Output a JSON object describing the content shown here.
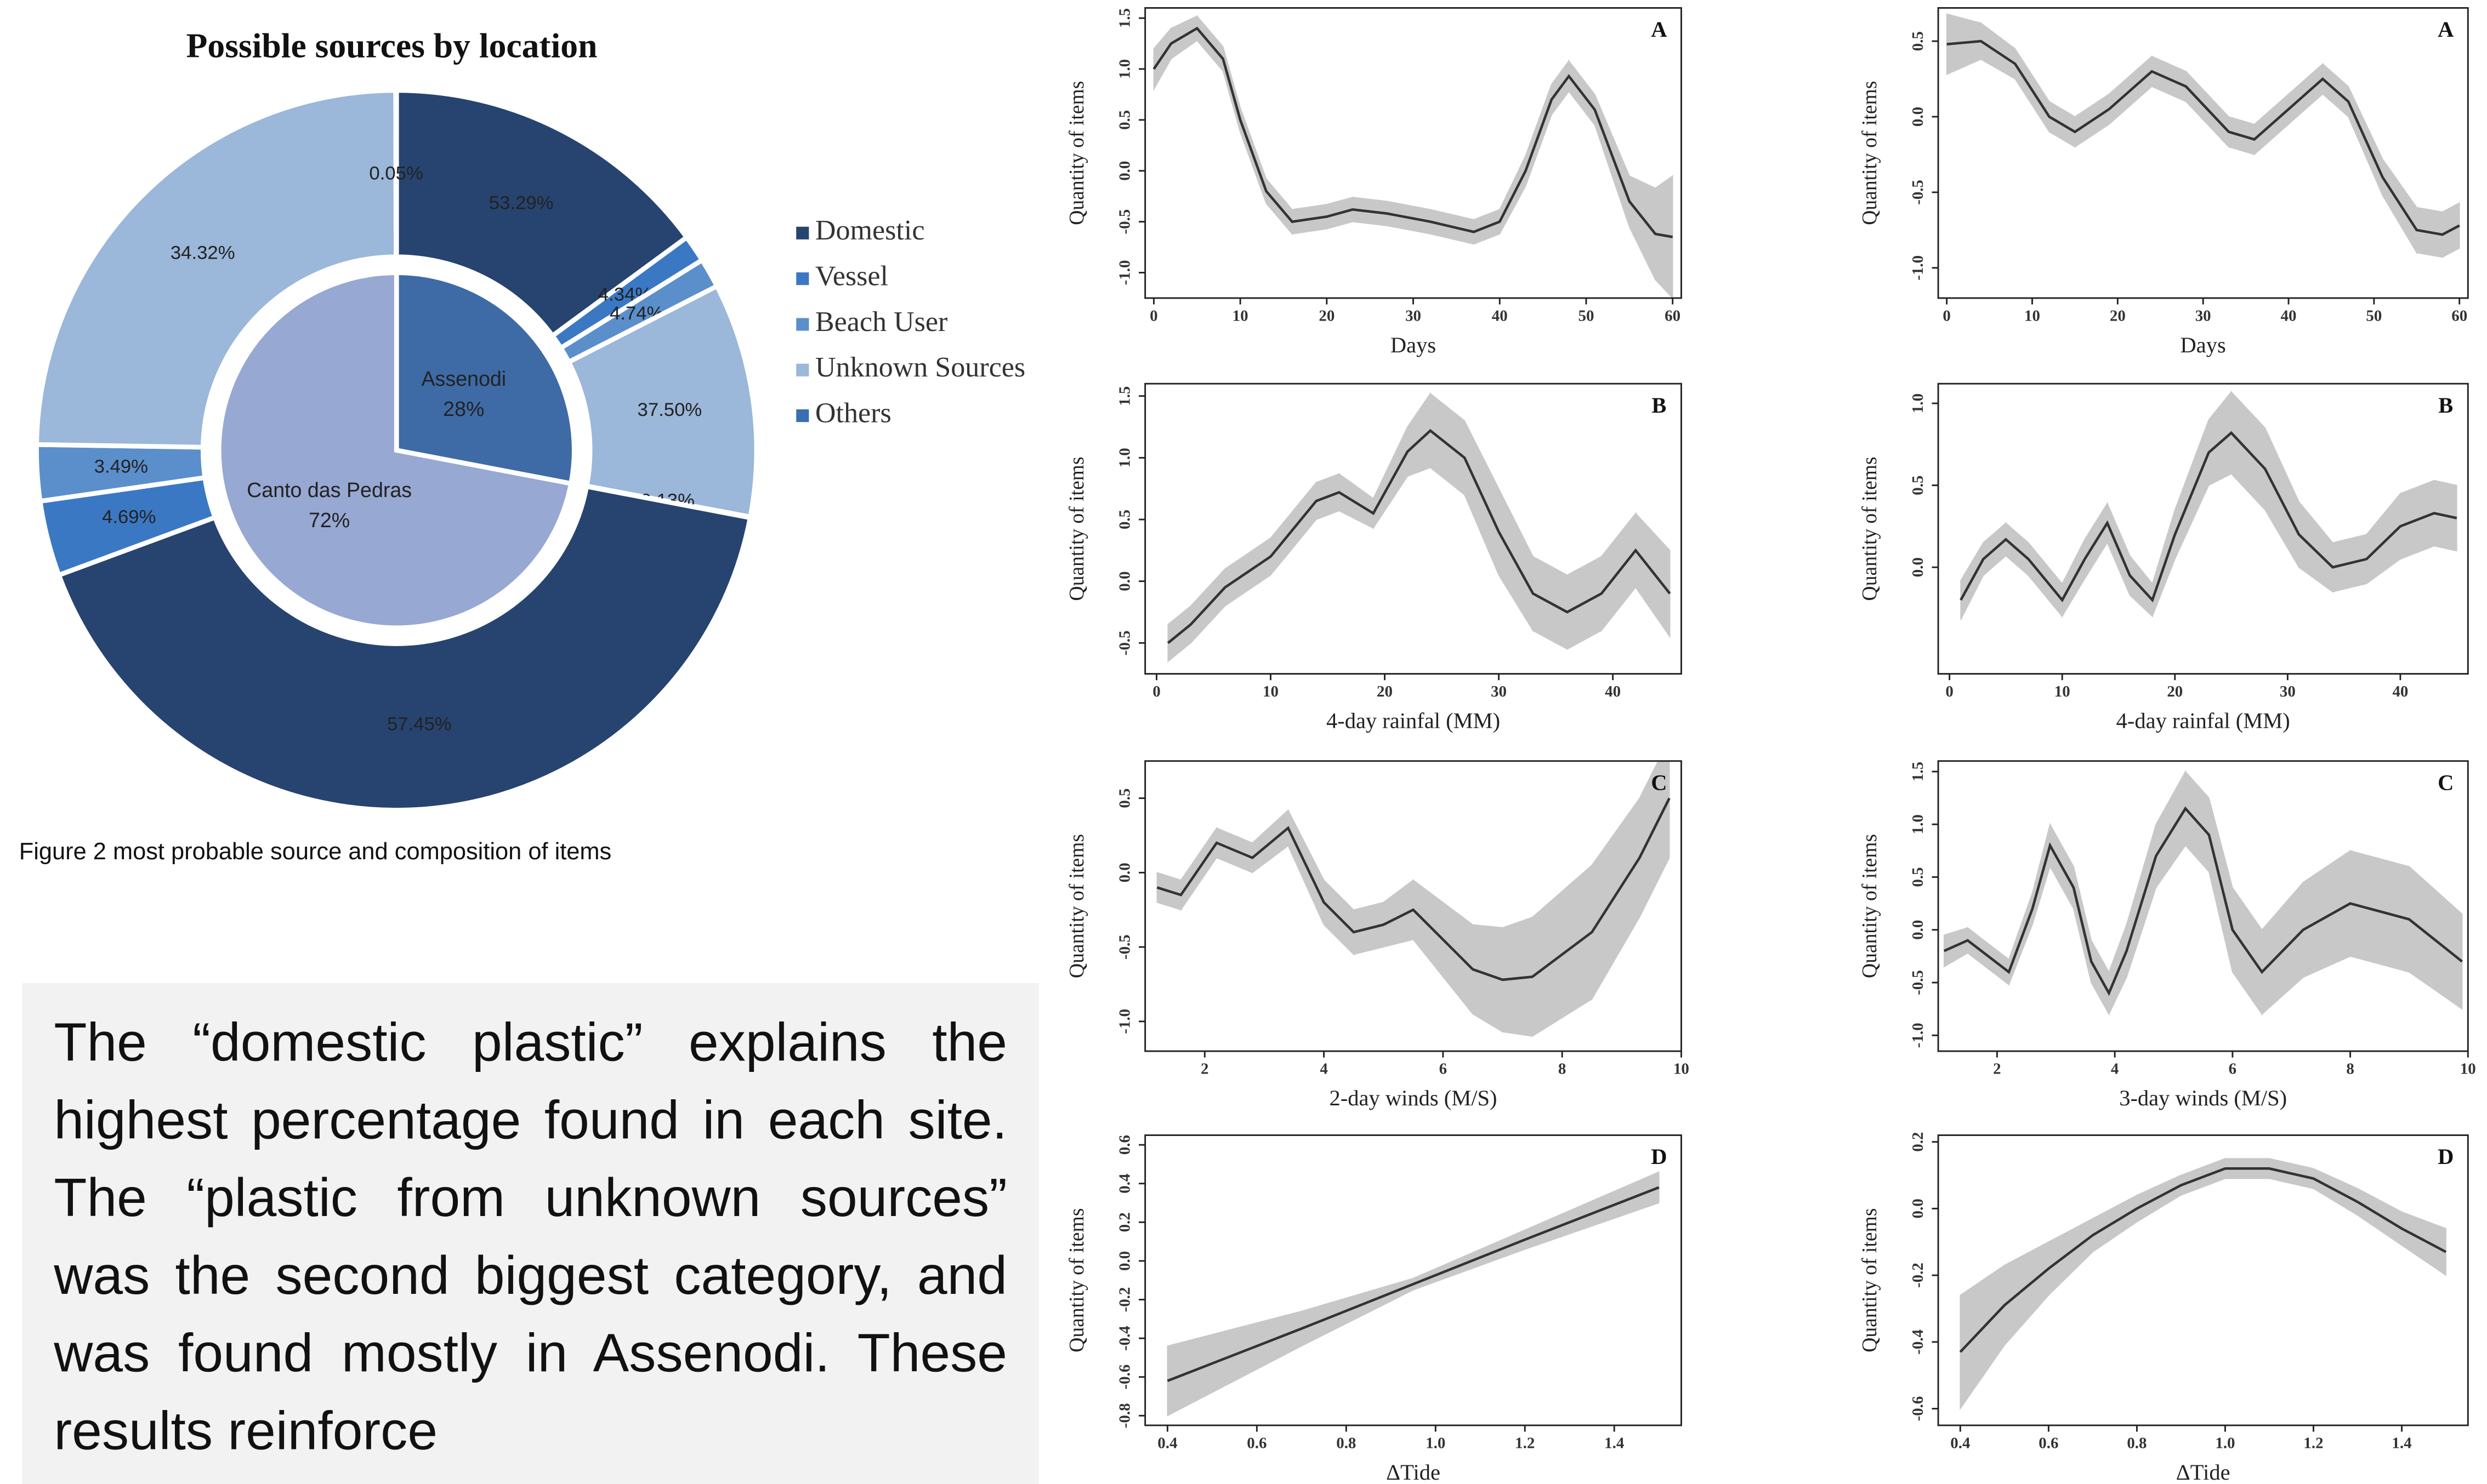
{
  "caption": "Figure 2 most probable source and composition of items",
  "paragraph": "The “domestic plastic” explains the highest percentage found in each site. The “plastic from unknown sources” was the second biggest category, and was found mostly in Assenodi. These results reinforce",
  "chart_data": [
    {
      "type": "donut",
      "title": "Possible sources by location",
      "categories": [
        "Domestic",
        "Vessel",
        "Beach User",
        "Unknown Sources",
        "Others"
      ],
      "colors": [
        "#26446f",
        "#3b78c4",
        "#5b8fcc",
        "#9bb7d9",
        "#3a6fb0"
      ],
      "series": [
        {
          "name": "Assenodi",
          "share": 28,
          "share_label": "28%",
          "color": "#3e6ba5",
          "values": [
            53.29,
            4.34,
            4.74,
            37.5,
            0.13
          ],
          "value_labels": [
            "53.29%",
            "4.34%",
            "4.74%",
            "37.50%",
            "0.13%"
          ]
        },
        {
          "name": "Canto das Pedras",
          "share": 72,
          "share_label": "72%",
          "color": "#97a8d2",
          "values": [
            57.45,
            4.69,
            3.49,
            34.32,
            0.05
          ],
          "value_labels": [
            "57.45%",
            "4.69%",
            "3.49%",
            "34.32%",
            "0.05%"
          ]
        }
      ]
    },
    {
      "type": "smooth",
      "ylabel": "Quantity of items",
      "xlabel": "Days",
      "panel": "A",
      "xlim": [
        -1,
        61
      ],
      "ylim": [
        -1.25,
        1.6
      ],
      "xticks": [
        0,
        10,
        20,
        30,
        40,
        50,
        60
      ],
      "yticks": [
        {
          "value": -1,
          "label": "-1.0"
        },
        -0.5,
        {
          "value": 0,
          "label": "0.0"
        },
        0.5,
        {
          "value": 1,
          "label": "1.0"
        },
        1.5
      ],
      "x": [
        0,
        2,
        5,
        8,
        10,
        13,
        16,
        20,
        23,
        27,
        32,
        37,
        40,
        43,
        46,
        48,
        51,
        55,
        58,
        60
      ],
      "y": [
        1.0,
        1.25,
        1.4,
        1.1,
        0.5,
        -0.2,
        -0.5,
        -0.45,
        -0.38,
        -0.42,
        -0.5,
        -0.6,
        -0.5,
        0,
        0.7,
        0.93,
        0.6,
        -0.3,
        -0.62,
        -0.65
      ],
      "lower": [
        0.8,
        1.1,
        1.28,
        0.98,
        0.38,
        -0.32,
        -0.62,
        -0.57,
        -0.5,
        -0.54,
        -0.62,
        -0.72,
        -0.62,
        -0.15,
        0.55,
        0.78,
        0.45,
        -0.55,
        -1.07,
        -1.25
      ],
      "upper": [
        1.2,
        1.4,
        1.52,
        1.22,
        0.62,
        -0.08,
        -0.38,
        -0.33,
        -0.26,
        -0.3,
        -0.38,
        -0.48,
        -0.38,
        0.15,
        0.85,
        1.08,
        0.75,
        -0.05,
        -0.17,
        -0.05
      ]
    },
    {
      "type": "smooth",
      "ylabel": "Quantity of items",
      "xlabel": "Days",
      "panel": "A",
      "xlim": [
        -1,
        61
      ],
      "ylim": [
        -1.2,
        0.72
      ],
      "xticks": [
        0,
        10,
        20,
        30,
        40,
        50,
        60
      ],
      "yticks": [
        {
          "value": -1,
          "label": "-1.0"
        },
        -0.5,
        {
          "value": 0,
          "label": "0.0"
        },
        0.5
      ],
      "x": [
        0,
        4,
        8,
        12,
        15,
        19,
        24,
        28,
        33,
        36,
        40,
        44,
        47,
        51,
        55,
        58,
        60
      ],
      "y": [
        0.48,
        0.5,
        0.35,
        0.0,
        -0.1,
        0.05,
        0.3,
        0.2,
        -0.1,
        -0.15,
        0.05,
        0.25,
        0.1,
        -0.4,
        -0.75,
        -0.78,
        -0.72
      ],
      "lower": [
        0.28,
        0.38,
        0.25,
        -0.1,
        -0.2,
        -0.05,
        0.2,
        0.1,
        -0.2,
        -0.25,
        -0.05,
        0.15,
        0.0,
        -0.52,
        -0.9,
        -0.93,
        -0.87
      ],
      "upper": [
        0.68,
        0.62,
        0.45,
        0.1,
        0.0,
        0.15,
        0.4,
        0.3,
        0.0,
        -0.05,
        0.15,
        0.35,
        0.2,
        -0.28,
        -0.6,
        -0.63,
        -0.57
      ]
    },
    {
      "type": "smooth",
      "ylabel": "Quantity of items",
      "xlabel": "4-day rainfal (MM)",
      "panel": "B",
      "xlim": [
        -1,
        46
      ],
      "ylim": [
        -0.75,
        1.6
      ],
      "xticks": [
        0,
        10,
        20,
        30,
        40
      ],
      "yticks": [
        -0.5,
        {
          "value": 0,
          "label": "0.0"
        },
        0.5,
        {
          "value": 1,
          "label": "1.0"
        },
        1.5
      ],
      "x": [
        1,
        3,
        6,
        10,
        14,
        16,
        19,
        22,
        24,
        27,
        30,
        33,
        36,
        39,
        42,
        45
      ],
      "y": [
        -0.5,
        -0.35,
        -0.05,
        0.2,
        0.65,
        0.72,
        0.55,
        1.05,
        1.22,
        1.0,
        0.4,
        -0.1,
        -0.25,
        -0.1,
        0.25,
        -0.1
      ],
      "lower": [
        -0.65,
        -0.5,
        -0.2,
        0.05,
        0.5,
        0.57,
        0.43,
        0.85,
        0.92,
        0.7,
        0.05,
        -0.4,
        -0.55,
        -0.4,
        -0.05,
        -0.45
      ],
      "upper": [
        -0.35,
        -0.2,
        0.1,
        0.35,
        0.8,
        0.87,
        0.67,
        1.25,
        1.52,
        1.3,
        0.75,
        0.2,
        0.05,
        0.2,
        0.55,
        0.25
      ]
    },
    {
      "type": "smooth",
      "ylabel": "Quantity of items",
      "xlabel": "4-day rainfal (MM)",
      "panel": "B",
      "xlim": [
        -1,
        46
      ],
      "ylim": [
        -0.65,
        1.12
      ],
      "xticks": [
        0,
        10,
        20,
        30,
        40
      ],
      "yticks": [
        {
          "value": 0,
          "label": "0.0"
        },
        0.5,
        {
          "value": 1,
          "label": "1.0"
        }
      ],
      "x": [
        1,
        3,
        5,
        7,
        10,
        12,
        14,
        16,
        18,
        20,
        23,
        25,
        28,
        31,
        34,
        37,
        40,
        43,
        45
      ],
      "y": [
        -0.2,
        0.05,
        0.17,
        0.05,
        -0.2,
        0.05,
        0.27,
        -0.05,
        -0.2,
        0.2,
        0.7,
        0.82,
        0.6,
        0.2,
        0.0,
        0.05,
        0.25,
        0.33,
        0.3
      ],
      "lower": [
        -0.32,
        -0.05,
        0.07,
        -0.05,
        -0.3,
        -0.07,
        0.15,
        -0.17,
        -0.3,
        0.05,
        0.5,
        0.57,
        0.35,
        0.0,
        -0.15,
        -0.1,
        0.05,
        0.13,
        0.1
      ],
      "upper": [
        -0.08,
        0.15,
        0.27,
        0.15,
        -0.1,
        0.17,
        0.39,
        0.07,
        -0.1,
        0.35,
        0.9,
        1.07,
        0.85,
        0.4,
        0.15,
        0.2,
        0.45,
        0.53,
        0.5
      ]
    },
    {
      "type": "smooth",
      "ylabel": "Quantity of items",
      "xlabel": "2-day winds (M/S)",
      "panel": "C",
      "xlim": [
        1,
        10
      ],
      "ylim": [
        -1.2,
        0.75
      ],
      "xticks": [
        2,
        4,
        6,
        8,
        10
      ],
      "yticks": [
        {
          "value": -1,
          "label": "-1.0"
        },
        -0.5,
        {
          "value": 0,
          "label": "0.0"
        },
        0.5
      ],
      "x": [
        1.2,
        1.6,
        2.2,
        2.8,
        3.4,
        4,
        4.5,
        5,
        5.5,
        6,
        6.5,
        7,
        7.5,
        8.5,
        9.3,
        9.8
      ],
      "y": [
        -0.1,
        -0.15,
        0.2,
        0.1,
        0.3,
        -0.2,
        -0.4,
        -0.35,
        -0.25,
        -0.45,
        -0.65,
        -0.72,
        -0.7,
        -0.4,
        0.1,
        0.5
      ],
      "lower": [
        -0.2,
        -0.25,
        0.1,
        0.0,
        0.18,
        -0.35,
        -0.55,
        -0.5,
        -0.45,
        -0.7,
        -0.95,
        -1.07,
        -1.1,
        -0.85,
        -0.3,
        0.1
      ],
      "upper": [
        0.0,
        -0.05,
        0.3,
        0.2,
        0.42,
        -0.05,
        -0.25,
        -0.2,
        -0.05,
        -0.2,
        -0.35,
        -0.37,
        -0.3,
        0.05,
        0.5,
        0.9
      ]
    },
    {
      "type": "smooth",
      "ylabel": "Quantity of items",
      "xlabel": "3-day winds (M/S)",
      "panel": "C",
      "xlim": [
        1,
        10
      ],
      "ylim": [
        -1.15,
        1.6
      ],
      "xticks": [
        2,
        4,
        6,
        8,
        10
      ],
      "yticks": [
        {
          "value": -1,
          "label": "-1.0"
        },
        -0.5,
        {
          "value": 0,
          "label": "0.0"
        },
        0.5,
        {
          "value": 1,
          "label": "1.0"
        },
        1.5
      ],
      "x": [
        1.1,
        1.5,
        2.2,
        2.6,
        2.9,
        3.3,
        3.6,
        3.9,
        4.2,
        4.7,
        5.2,
        5.6,
        6.0,
        6.5,
        7.2,
        8.0,
        9.0,
        9.9
      ],
      "y": [
        -0.2,
        -0.1,
        -0.4,
        0.2,
        0.8,
        0.4,
        -0.3,
        -0.6,
        -0.2,
        0.7,
        1.15,
        0.9,
        0.0,
        -0.4,
        0.0,
        0.25,
        0.1,
        -0.3
      ],
      "lower": [
        -0.35,
        -0.22,
        -0.52,
        0.05,
        0.6,
        0.2,
        -0.5,
        -0.8,
        -0.45,
        0.4,
        0.8,
        0.55,
        -0.4,
        -0.8,
        -0.45,
        -0.25,
        -0.4,
        -0.75
      ],
      "upper": [
        -0.05,
        0.02,
        -0.28,
        0.35,
        1.0,
        0.6,
        -0.1,
        -0.4,
        0.05,
        1.0,
        1.5,
        1.25,
        0.4,
        0.0,
        0.45,
        0.75,
        0.6,
        0.15
      ]
    },
    {
      "type": "smooth",
      "ylabel": "Quantity of items",
      "xlabel": "ΔTide",
      "panel": "D",
      "xlim": [
        0.35,
        1.55
      ],
      "ylim": [
        -0.85,
        0.65
      ],
      "xticks": [
        0.4,
        0.6,
        0.8,
        {
          "value": 1,
          "label": "1.0"
        },
        1.2,
        1.4
      ],
      "yticks": [
        -0.8,
        -0.6,
        -0.4,
        -0.2,
        {
          "value": 0,
          "label": "0.0"
        },
        0.2,
        0.4,
        0.6
      ],
      "x": [
        0.4,
        0.7,
        0.95,
        1.2,
        1.5
      ],
      "y": [
        -0.62,
        -0.35,
        -0.12,
        0.11,
        0.38
      ],
      "lower": [
        -0.8,
        -0.44,
        -0.15,
        0.06,
        0.3
      ],
      "upper": [
        -0.44,
        -0.26,
        -0.09,
        0.16,
        0.46
      ]
    },
    {
      "type": "smooth",
      "ylabel": "Quantity of items",
      "xlabel": "ΔTide",
      "panel": "D",
      "xlim": [
        0.35,
        1.55
      ],
      "ylim": [
        -0.65,
        0.22
      ],
      "xticks": [
        0.4,
        0.6,
        0.8,
        {
          "value": 1,
          "label": "1.0"
        },
        1.2,
        1.4
      ],
      "yticks": [
        -0.6,
        -0.4,
        -0.2,
        {
          "value": 0,
          "label": "0.0"
        },
        0.2
      ],
      "x": [
        0.4,
        0.5,
        0.6,
        0.7,
        0.8,
        0.9,
        1.0,
        1.1,
        1.2,
        1.3,
        1.4,
        1.5
      ],
      "y": [
        -0.43,
        -0.29,
        -0.18,
        -0.08,
        0.0,
        0.07,
        0.12,
        0.12,
        0.09,
        0.02,
        -0.06,
        -0.13
      ],
      "lower": [
        -0.6,
        -0.41,
        -0.26,
        -0.13,
        -0.04,
        0.04,
        0.09,
        0.09,
        0.06,
        -0.02,
        -0.11,
        -0.2
      ],
      "upper": [
        -0.26,
        -0.17,
        -0.1,
        -0.03,
        0.04,
        0.1,
        0.15,
        0.15,
        0.12,
        0.06,
        -0.01,
        -0.06
      ]
    }
  ]
}
